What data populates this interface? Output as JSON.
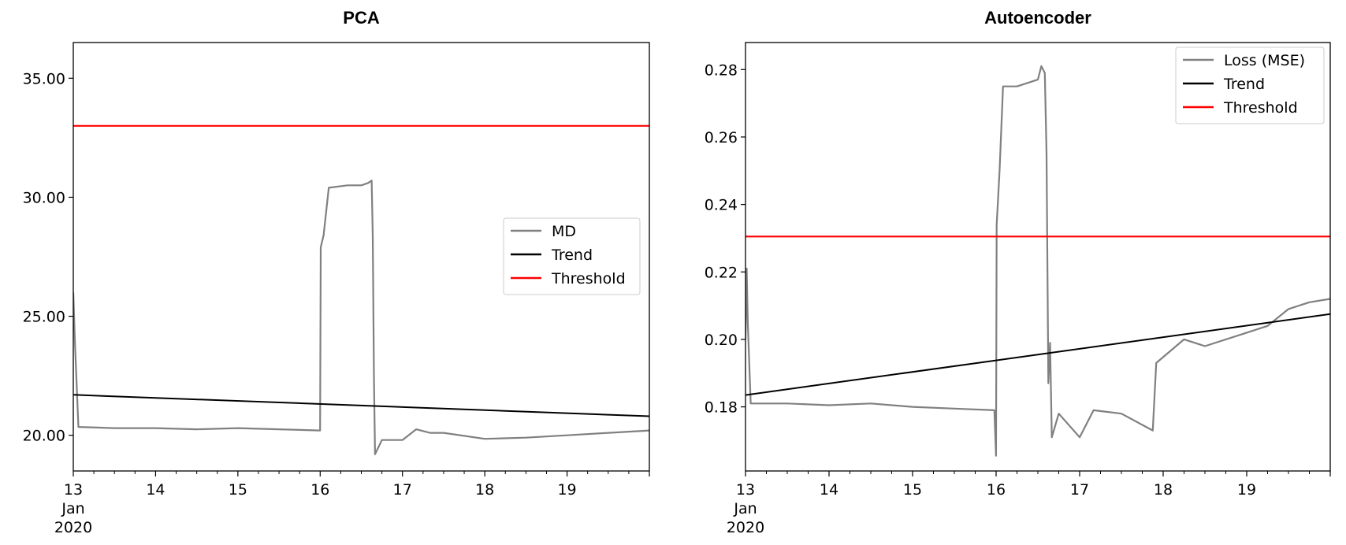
{
  "chart_data": [
    {
      "type": "line",
      "title": "PCA",
      "xlabel": "",
      "ylabel": "",
      "x_axis": {
        "range": [
          "2020-01-13",
          "2020-01-20"
        ],
        "tick_labels": [
          "13",
          "14",
          "15",
          "16",
          "17",
          "18",
          "19"
        ],
        "year_month_label": [
          "Jan",
          "2020"
        ]
      },
      "ylim": [
        18.5,
        36.5
      ],
      "y_tick_values": [
        20,
        25,
        30,
        35
      ],
      "y_tick_labels": [
        "20.00",
        "25.00",
        "30.00",
        "35.00"
      ],
      "legend": {
        "placement": "center-right",
        "entries": [
          "MD",
          "Trend",
          "Threshold"
        ]
      },
      "series": [
        {
          "name": "MD",
          "color": "#808080",
          "points": [
            [
              "2020-01-13 00:00",
              26.0
            ],
            [
              "2020-01-13 00:30",
              23.8
            ],
            [
              "2020-01-13 01:30",
              20.35
            ],
            [
              "2020-01-13 12:00",
              20.3
            ],
            [
              "2020-01-14 00:00",
              20.3
            ],
            [
              "2020-01-14 12:00",
              20.25
            ],
            [
              "2020-01-15 00:00",
              20.3
            ],
            [
              "2020-01-15 12:00",
              20.25
            ],
            [
              "2020-01-15 23:59",
              20.2
            ],
            [
              "2020-01-16 00:10",
              27.9
            ],
            [
              "2020-01-16 01:00",
              28.4
            ],
            [
              "2020-01-16 02:30",
              30.4
            ],
            [
              "2020-01-16 08:00",
              30.5
            ],
            [
              "2020-01-16 12:00",
              30.5
            ],
            [
              "2020-01-16 14:00",
              30.6
            ],
            [
              "2020-01-16 15:00",
              30.7
            ],
            [
              "2020-01-16 15:20",
              28.4
            ],
            [
              "2020-01-16 15:40",
              22.5
            ],
            [
              "2020-01-16 16:00",
              19.2
            ],
            [
              "2020-01-16 18:00",
              19.8
            ],
            [
              "2020-01-17 00:00",
              19.8
            ],
            [
              "2020-01-17 04:00",
              20.25
            ],
            [
              "2020-01-17 08:00",
              20.1
            ],
            [
              "2020-01-17 12:00",
              20.1
            ],
            [
              "2020-01-18 00:00",
              19.85
            ],
            [
              "2020-01-18 12:00",
              19.9
            ],
            [
              "2020-01-19 00:00",
              20.0
            ],
            [
              "2020-01-19 12:00",
              20.1
            ],
            [
              "2020-01-20 00:00",
              20.2
            ]
          ]
        },
        {
          "name": "Trend",
          "color": "#000000",
          "points": [
            [
              "2020-01-13 00:00",
              21.7
            ],
            [
              "2020-01-20 00:00",
              20.8
            ]
          ]
        },
        {
          "name": "Threshold",
          "color": "#ff0000",
          "points": [
            [
              "2020-01-13 00:00",
              33.0
            ],
            [
              "2020-01-20 00:00",
              33.0
            ]
          ]
        }
      ]
    },
    {
      "type": "line",
      "title": "Autoencoder",
      "xlabel": "",
      "ylabel": "",
      "x_axis": {
        "range": [
          "2020-01-13",
          "2020-01-20"
        ],
        "tick_labels": [
          "13",
          "14",
          "15",
          "16",
          "17",
          "18",
          "19"
        ],
        "year_month_label": [
          "Jan",
          "2020"
        ]
      },
      "ylim": [
        0.161,
        0.288
      ],
      "y_tick_values": [
        0.18,
        0.2,
        0.22,
        0.24,
        0.26,
        0.28
      ],
      "y_tick_labels": [
        "0.18",
        "0.20",
        "0.22",
        "0.24",
        "0.26",
        "0.28"
      ],
      "legend": {
        "placement": "top-right",
        "entries": [
          "Loss (MSE)",
          "Trend",
          "Threshold"
        ]
      },
      "series": [
        {
          "name": "Loss (MSE)",
          "color": "#808080",
          "points": [
            [
              "2020-01-13 00:00",
              0.2
            ],
            [
              "2020-01-13 00:20",
              0.221
            ],
            [
              "2020-01-13 00:40",
              0.205
            ],
            [
              "2020-01-13 01:30",
              0.181
            ],
            [
              "2020-01-13 12:00",
              0.181
            ],
            [
              "2020-01-14 00:00",
              0.1805
            ],
            [
              "2020-01-14 12:00",
              0.181
            ],
            [
              "2020-01-15 00:00",
              0.18
            ],
            [
              "2020-01-15 12:00",
              0.1795
            ],
            [
              "2020-01-15 23:30",
              0.179
            ],
            [
              "2020-01-15 23:59",
              0.1655
            ],
            [
              "2020-01-16 00:10",
              0.234
            ],
            [
              "2020-01-16 01:00",
              0.25
            ],
            [
              "2020-01-16 02:00",
              0.275
            ],
            [
              "2020-01-16 06:00",
              0.275
            ],
            [
              "2020-01-16 12:00",
              0.277
            ],
            [
              "2020-01-16 13:00",
              0.281
            ],
            [
              "2020-01-16 14:00",
              0.279
            ],
            [
              "2020-01-16 14:30",
              0.255
            ],
            [
              "2020-01-16 15:00",
              0.187
            ],
            [
              "2020-01-16 15:30",
              0.199
            ],
            [
              "2020-01-16 16:00",
              0.171
            ],
            [
              "2020-01-16 18:00",
              0.178
            ],
            [
              "2020-01-17 00:00",
              0.171
            ],
            [
              "2020-01-17 04:00",
              0.179
            ],
            [
              "2020-01-17 12:00",
              0.178
            ],
            [
              "2020-01-17 21:00",
              0.173
            ],
            [
              "2020-01-17 22:00",
              0.193
            ],
            [
              "2020-01-18 06:00",
              0.2
            ],
            [
              "2020-01-18 12:00",
              0.198
            ],
            [
              "2020-01-19 00:00",
              0.202
            ],
            [
              "2020-01-19 06:00",
              0.204
            ],
            [
              "2020-01-19 12:00",
              0.209
            ],
            [
              "2020-01-19 18:00",
              0.211
            ],
            [
              "2020-01-20 00:00",
              0.212
            ]
          ]
        },
        {
          "name": "Trend",
          "color": "#000000",
          "points": [
            [
              "2020-01-13 00:00",
              0.1835
            ],
            [
              "2020-01-20 00:00",
              0.2075
            ]
          ]
        },
        {
          "name": "Threshold",
          "color": "#ff0000",
          "points": [
            [
              "2020-01-13 00:00",
              0.2305
            ],
            [
              "2020-01-20 00:00",
              0.2305
            ]
          ]
        }
      ]
    }
  ]
}
